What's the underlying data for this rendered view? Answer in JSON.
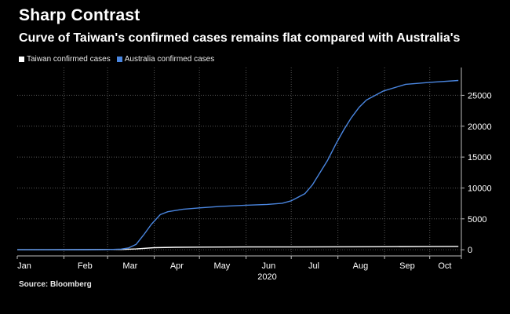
{
  "header": {
    "title": "Sharp Contrast",
    "subtitle": "Curve of Taiwan's confirmed cases remains flat compared with Australia's"
  },
  "source": "Source: Bloomberg",
  "colors": {
    "background": "#000000",
    "taiwan": "#ffffff",
    "australia": "#4a86e0",
    "grid": "#555555"
  },
  "chart_data": {
    "type": "line",
    "title": "Sharp Contrast",
    "subtitle": "Curve of Taiwan's confirmed cases remains flat compared with Australia's",
    "xlabel": "2020",
    "ylabel": "",
    "x_tick_labels": [
      "Jan",
      "Feb",
      "Mar",
      "Apr",
      "May",
      "Jun",
      "Jul",
      "Aug",
      "Sep",
      "Oct"
    ],
    "y_ticks": [
      0,
      5000,
      10000,
      15000,
      20000,
      25000
    ],
    "ylim": [
      -1000,
      29500
    ],
    "xlim": [
      "2020-01-01",
      "2020-10-22"
    ],
    "grid": true,
    "legend_position": "top-left",
    "series": [
      {
        "name": "Taiwan confirmed cases",
        "color": "#ffffff",
        "points": [
          [
            "2020-01-01",
            0
          ],
          [
            "2020-01-21",
            1
          ],
          [
            "2020-02-15",
            18
          ],
          [
            "2020-03-01",
            40
          ],
          [
            "2020-03-10",
            47
          ],
          [
            "2020-03-20",
            135
          ],
          [
            "2020-04-01",
            329
          ],
          [
            "2020-04-15",
            393
          ],
          [
            "2020-05-01",
            429
          ],
          [
            "2020-06-01",
            443
          ],
          [
            "2020-07-01",
            447
          ],
          [
            "2020-08-01",
            474
          ],
          [
            "2020-09-01",
            488
          ],
          [
            "2020-10-01",
            514
          ],
          [
            "2020-10-20",
            541
          ]
        ]
      },
      {
        "name": "Australia confirmed cases",
        "color": "#4a86e0",
        "points": [
          [
            "2020-01-01",
            0
          ],
          [
            "2020-01-25",
            4
          ],
          [
            "2020-02-15",
            15
          ],
          [
            "2020-03-01",
            29
          ],
          [
            "2020-03-10",
            107
          ],
          [
            "2020-03-15",
            298
          ],
          [
            "2020-03-20",
            876
          ],
          [
            "2020-03-25",
            2423
          ],
          [
            "2020-03-30",
            4093
          ],
          [
            "2020-04-05",
            5687
          ],
          [
            "2020-04-10",
            6152
          ],
          [
            "2020-04-20",
            6547
          ],
          [
            "2020-05-01",
            6778
          ],
          [
            "2020-05-15",
            7019
          ],
          [
            "2020-06-01",
            7204
          ],
          [
            "2020-06-15",
            7335
          ],
          [
            "2020-06-25",
            7521
          ],
          [
            "2020-07-01",
            7920
          ],
          [
            "2020-07-10",
            9059
          ],
          [
            "2020-07-15",
            10487
          ],
          [
            "2020-07-20",
            12428
          ],
          [
            "2020-07-25",
            14403
          ],
          [
            "2020-07-31",
            17282
          ],
          [
            "2020-08-05",
            19445
          ],
          [
            "2020-08-10",
            21397
          ],
          [
            "2020-08-15",
            23035
          ],
          [
            "2020-08-20",
            24236
          ],
          [
            "2020-08-31",
            25670
          ],
          [
            "2020-09-15",
            26779
          ],
          [
            "2020-10-01",
            27096
          ],
          [
            "2020-10-20",
            27400
          ]
        ]
      }
    ]
  }
}
